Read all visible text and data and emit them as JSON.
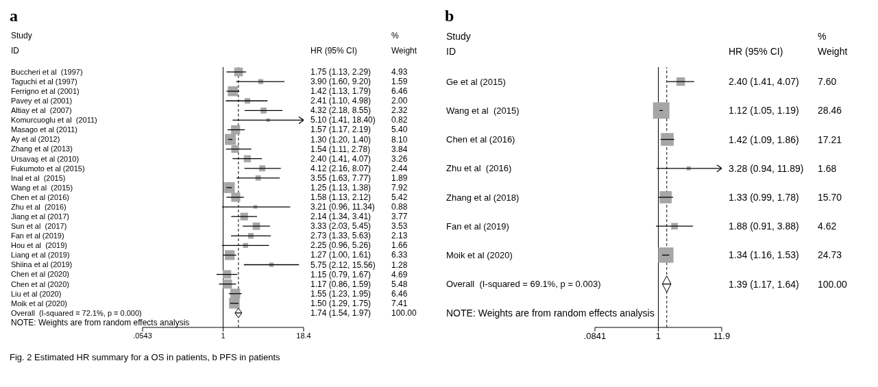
{
  "chart_data": [
    {
      "type": "scatter",
      "title": "a",
      "orientation": "horizontal",
      "log": "x",
      "xlim": [
        0.0543,
        18.4
      ],
      "xticks": [
        {
          "value": 0.0543,
          "label": ".0543"
        },
        1,
        18.4
      ],
      "categories": [
        "Buccheri et al  (1997)",
        "Taguchi et al (1997)",
        "Ferrigno et al (2001)",
        "Pavey et al (2001)",
        "Altiay et al  (2007)",
        "Komurcuoglu et al  (2011)",
        "Masago et al (2011)",
        "Ay et al (2012)",
        "Zhang et al (2013)",
        "Ursavaş et al (2010)",
        "Fukumoto et al (2015)",
        "Inal et al  (2015)",
        "Wang et al  (2015)",
        "Chen et al (2016)",
        "Zhu et al  (2016)",
        "Jiang et al (2017)",
        "Sun et al  (2017)",
        "Fan et al (2019)",
        "Hou et al  (2019)",
        "Liang et al (2019)",
        "Shiina et al (2019)",
        "Chen et al (2020)",
        "Chen et al (2020)",
        "Liu et al (2020)",
        "Moik et al (2020)",
        "Overall  (I-squared = 72.1%, p = 0.000)"
      ],
      "series": [
        {
          "type": "bubble",
          "marker": "square",
          "color": "#a6a6a6",
          "values": [
            1.75,
            3.9,
            1.42,
            2.41,
            4.32,
            5.1,
            1.57,
            1.3,
            1.54,
            2.4,
            4.12,
            3.55,
            1.25,
            1.58,
            3.21,
            2.14,
            3.33,
            2.73,
            2.25,
            1.27,
            5.75,
            1.15,
            1.17,
            1.55,
            1.5,
            null
          ],
          "errors": [
            [
              1.13,
              2.29
            ],
            [
              1.6,
              9.2
            ],
            [
              1.13,
              1.79
            ],
            [
              1.1,
              4.98
            ],
            [
              2.18,
              8.55
            ],
            [
              1.41,
              18.4
            ],
            [
              1.17,
              2.19
            ],
            [
              1.2,
              1.4
            ],
            [
              1.11,
              2.78
            ],
            [
              1.41,
              4.07
            ],
            [
              2.16,
              8.07
            ],
            [
              1.63,
              7.77
            ],
            [
              1.13,
              1.38
            ],
            [
              1.13,
              2.12
            ],
            [
              0.96,
              11.34
            ],
            [
              1.34,
              3.41
            ],
            [
              2.03,
              5.45
            ],
            [
              1.33,
              5.63
            ],
            [
              0.96,
              5.26
            ],
            [
              1.0,
              1.61
            ],
            [
              2.12,
              15.56
            ],
            [
              0.79,
              1.67
            ],
            [
              0.86,
              1.59
            ],
            [
              1.23,
              1.95
            ],
            [
              1.29,
              1.75
            ],
            null
          ],
          "sizes": [
            0.61,
            0.2,
            0.8,
            0.25,
            0.29,
            0.1,
            0.67,
            1,
            0.47,
            0.4,
            0.3,
            0.23,
            0.98,
            0.67,
            0.11,
            0.47,
            0.44,
            0.26,
            0.2,
            0.78,
            0.16,
            0.58,
            0.68,
            0.8,
            0.91,
            null
          ]
        },
        {
          "type": "scatter",
          "marker": "diamond",
          "color": "#ffffff",
          "values": [
            null,
            null,
            null,
            null,
            null,
            null,
            null,
            null,
            null,
            null,
            null,
            null,
            null,
            null,
            null,
            null,
            null,
            null,
            null,
            null,
            null,
            null,
            null,
            null,
            null,
            1.74
          ],
          "errors": [
            null,
            null,
            null,
            null,
            null,
            null,
            null,
            null,
            null,
            null,
            null,
            null,
            null,
            null,
            null,
            null,
            null,
            null,
            null,
            null,
            null,
            null,
            null,
            null,
            null,
            [
              1.54,
              1.97
            ]
          ]
        }
      ],
      "ref_lines": [
        {
          "axis": "x",
          "value": 1,
          "line_style": "solid"
        },
        {
          "axis": "x",
          "value": 1.74,
          "line_style": "dashed"
        }
      ],
      "annotations": [
        "Study",
        "ID",
        "HR (95% CI)",
        "%",
        "Weight",
        "NOTE: Weights are from random effects analysis",
        "1.75 (1.13, 2.29)",
        "4.93",
        "3.90 (1.60, 9.20)",
        "1.59",
        "1.42 (1.13, 1.79)",
        "6.46",
        "2.41 (1.10, 4.98)",
        "2.00",
        "4.32 (2.18, 8.55)",
        "2.32",
        "5.10 (1.41, 18.40)",
        "0.82",
        "1.57 (1.17, 2.19)",
        "5.40",
        "1.30 (1.20, 1.40)",
        "8.10",
        "1.54 (1.11, 2.78)",
        "3.84",
        "2.40 (1.41, 4.07)",
        "3.26",
        "4.12 (2.16, 8.07)",
        "2.44",
        "3.55 (1.63, 7.77)",
        "1.89",
        "1.25 (1.13, 1.38)",
        "7.92",
        "1.58 (1.13, 2.12)",
        "5.42",
        "3.21 (0.96, 11.34)",
        "0.88",
        "2.14 (1.34, 3.41)",
        "3.77",
        "3.33 (2.03, 5.45)",
        "3.53",
        "2.73 (1.33, 5.63)",
        "2.13",
        "2.25 (0.96, 5.26)",
        "1.66",
        "1.27 (1.00, 1.61)",
        "6.33",
        "5.75 (2.12, 15.56)",
        "1.28",
        "1.15 (0.79, 1.67)",
        "4.69",
        "1.17 (0.86, 1.59)",
        "5.48",
        "1.55 (1.23, 1.95)",
        "6.46",
        "1.50 (1.29, 1.75)",
        "7.41",
        "1.74 (1.54, 1.97)",
        "100.00",
        "Fig. 2  Estimated HR summary for a OS in patients, b PFS in patients"
      ]
    },
    {
      "type": "scatter",
      "title": "b",
      "orientation": "horizontal",
      "log": "x",
      "xlim": [
        0.0841,
        11.9
      ],
      "xticks": [
        {
          "value": 0.0841,
          "label": ".0841"
        },
        1,
        11.9
      ],
      "categories": [
        "Ge et al (2015)",
        "Wang et al  (2015)",
        "Chen et al (2016)",
        "Zhu et al  (2016)",
        "Zhang et al (2018)",
        "Fan et al (2019)",
        "Moik et al (2020)",
        "Overall  (I-squared = 69.1%, p = 0.003)"
      ],
      "series": [
        {
          "type": "bubble",
          "marker": "square",
          "color": "#a6a6a6",
          "values": [
            2.4,
            1.12,
            1.42,
            3.28,
            1.33,
            1.88,
            1.34,
            null
          ],
          "errors": [
            [
              1.41,
              4.07
            ],
            [
              1.05,
              1.19
            ],
            [
              1.09,
              1.86
            ],
            [
              0.94,
              11.89
            ],
            [
              0.99,
              1.78
            ],
            [
              0.91,
              3.88
            ],
            [
              1.16,
              1.53
            ],
            null
          ],
          "sizes": [
            0.27,
            1,
            0.6,
            0.06,
            0.55,
            0.16,
            0.87,
            null
          ]
        },
        {
          "type": "scatter",
          "marker": "diamond",
          "color": "#ffffff",
          "values": [
            null,
            null,
            null,
            null,
            null,
            null,
            null,
            1.39
          ],
          "errors": [
            null,
            null,
            null,
            null,
            null,
            null,
            null,
            [
              1.17,
              1.64
            ]
          ]
        }
      ],
      "ref_lines": [
        {
          "axis": "x",
          "value": 1,
          "line_style": "solid"
        },
        {
          "axis": "x",
          "value": 1.39,
          "line_style": "dashed"
        }
      ],
      "annotations": [
        "Study",
        "ID",
        "HR (95% CI)",
        "%",
        "Weight",
        "NOTE: Weights are from random effects analysis",
        "2.40 (1.41, 4.07)",
        "7.60",
        "1.12 (1.05, 1.19)",
        "28.46",
        "1.42 (1.09, 1.86)",
        "17.21",
        "3.28 (0.94, 11.89)",
        "1.68",
        "1.33 (0.99, 1.78)",
        "15.70",
        "1.88 (0.91, 3.88)",
        "4.62",
        "1.34 (1.16, 1.53)",
        "24.73",
        "1.39 (1.17, 1.64)",
        "100.00"
      ]
    }
  ]
}
